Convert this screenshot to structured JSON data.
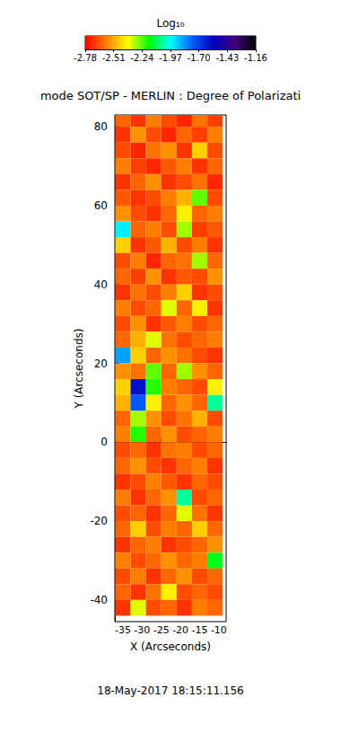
{
  "chart_data": {
    "type": "heatmap",
    "title": "mode SOT/SP - MERLIN : Degree of Polarizati",
    "xlabel": "X (Arcseconds)",
    "ylabel": "Y (Arcseconds)",
    "annotation": "18-May-2017 18:15:11.156",
    "x": [
      -35,
      -31,
      -27,
      -23,
      -19,
      -15,
      -11
    ],
    "y": [
      82,
      78,
      74,
      70,
      66,
      62,
      58,
      54,
      50,
      46,
      42,
      38,
      34,
      30,
      26,
      22,
      18,
      14,
      10,
      6,
      2,
      -2,
      -6,
      -10,
      -14,
      -18,
      -22,
      -26,
      -30,
      -34,
      -38,
      -42
    ],
    "values": [
      [
        -2.62,
        -2.7,
        -2.58,
        -2.66,
        -2.72,
        -2.6,
        -2.68
      ],
      [
        -2.7,
        -2.55,
        -2.66,
        -2.72,
        -2.62,
        -2.68,
        -2.58
      ],
      [
        -2.66,
        -2.72,
        -2.6,
        -2.55,
        -2.7,
        -2.45,
        -2.66
      ],
      [
        -2.58,
        -2.68,
        -2.72,
        -2.64,
        -2.58,
        -2.7,
        -2.62
      ],
      [
        -2.7,
        -2.62,
        -2.55,
        -2.7,
        -2.66,
        -2.6,
        -2.72
      ],
      [
        -2.64,
        -2.7,
        -2.66,
        -2.58,
        -2.5,
        -2.25,
        -2.66
      ],
      [
        -2.55,
        -2.66,
        -2.7,
        -2.62,
        -2.4,
        -2.62,
        -2.58
      ],
      [
        -1.95,
        -2.62,
        -2.58,
        -2.66,
        -2.3,
        -2.68,
        -2.64
      ],
      [
        -2.45,
        -2.7,
        -2.64,
        -2.5,
        -2.66,
        -2.58,
        -2.7
      ],
      [
        -2.66,
        -2.58,
        -2.72,
        -2.62,
        -2.6,
        -2.3,
        -2.62
      ],
      [
        -2.62,
        -2.68,
        -2.55,
        -2.7,
        -2.64,
        -2.66,
        -2.55
      ],
      [
        -2.7,
        -2.6,
        -2.66,
        -2.58,
        -2.45,
        -2.7,
        -2.66
      ],
      [
        -2.58,
        -2.66,
        -2.62,
        -2.35,
        -2.62,
        -2.4,
        -2.7
      ],
      [
        -2.66,
        -2.55,
        -2.7,
        -2.64,
        -2.58,
        -2.66,
        -2.62
      ],
      [
        -2.62,
        -2.5,
        -2.35,
        -2.6,
        -2.66,
        -2.62,
        -2.58
      ],
      [
        -1.85,
        -2.45,
        -2.62,
        -2.55,
        -2.6,
        -2.66,
        -2.7
      ],
      [
        -2.55,
        -2.6,
        -2.25,
        -2.62,
        -2.3,
        -2.55,
        -2.62
      ],
      [
        -2.45,
        -1.6,
        -2.2,
        -2.58,
        -2.62,
        -2.66,
        -2.4
      ],
      [
        -2.5,
        -1.75,
        -2.4,
        -2.62,
        -2.55,
        -2.62,
        -2.05
      ],
      [
        -2.62,
        -2.3,
        -2.55,
        -2.66,
        -2.6,
        -2.5,
        -2.66
      ],
      [
        -2.58,
        -2.2,
        -2.62,
        -2.55,
        -2.66,
        -2.62,
        -2.58
      ],
      [
        -2.66,
        -2.62,
        -2.7,
        -2.6,
        -2.58,
        -2.66,
        -2.62
      ],
      [
        -2.62,
        -2.55,
        -2.66,
        -2.7,
        -2.62,
        -2.58,
        -2.7
      ],
      [
        -2.7,
        -2.66,
        -2.58,
        -2.64,
        -2.7,
        -2.62,
        -2.66
      ],
      [
        -2.58,
        -2.7,
        -2.62,
        -2.55,
        -2.05,
        -2.66,
        -2.62
      ],
      [
        -2.66,
        -2.62,
        -2.7,
        -2.62,
        -2.35,
        -2.6,
        -2.7
      ],
      [
        -2.62,
        -2.45,
        -2.66,
        -2.58,
        -2.62,
        -2.45,
        -2.62
      ],
      [
        -2.7,
        -2.62,
        -2.58,
        -2.7,
        -2.66,
        -2.62,
        -2.55
      ],
      [
        -2.58,
        -2.66,
        -2.62,
        -2.55,
        -2.62,
        -2.58,
        -2.15
      ],
      [
        -2.66,
        -2.58,
        -2.7,
        -2.62,
        -2.55,
        -2.66,
        -2.62
      ],
      [
        -2.62,
        -2.7,
        -2.6,
        -2.4,
        -2.66,
        -2.62,
        -2.66
      ],
      [
        -2.7,
        -2.35,
        -2.66,
        -2.62,
        -2.7,
        -2.58,
        -2.62
      ]
    ],
    "xlim": [
      -37.1,
      -8.1
    ],
    "ylim": [
      -45.5,
      83
    ],
    "xticks": [
      -35,
      -30,
      -25,
      -20,
      -15,
      -10
    ],
    "yticks": [
      -40,
      -20,
      0,
      20,
      40,
      60,
      80
    ],
    "colorbar": {
      "label": "Log₁₀",
      "range": [
        -2.78,
        -1.16
      ],
      "ticks": [
        -2.78,
        -2.51,
        -2.24,
        -1.97,
        {
          "value": -1.7,
          "label": "-1.70"
        },
        -1.43,
        -1.16
      ]
    }
  }
}
